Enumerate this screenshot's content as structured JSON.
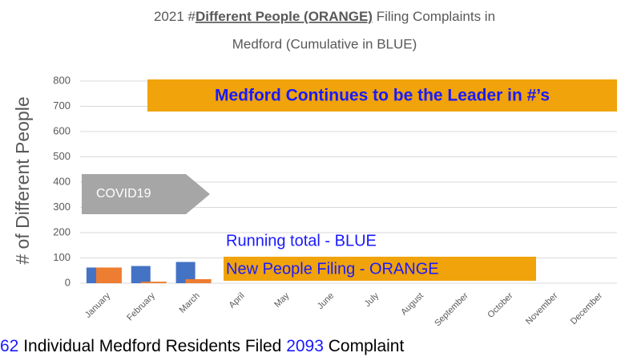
{
  "chart_data": {
    "type": "bar",
    "title": [
      "2021 #",
      "Different People (ORANGE)",
      " Filing Complaints in",
      "Medford (Cumulative in BLUE)"
    ],
    "y_label": "# of Different People",
    "categories": [
      "January",
      "February",
      "March",
      "April",
      "May",
      "June",
      "July",
      "August",
      "September",
      "October",
      "November",
      "December"
    ],
    "series": [
      {
        "name": "Running total - BLUE",
        "color": "#4472c4",
        "values": [
          62,
          68,
          84,
          null,
          null,
          null,
          null,
          null,
          null,
          null,
          null,
          null
        ]
      },
      {
        "name": "New People Filing - ORANGE",
        "color": "#ed7d31",
        "values": [
          62,
          6,
          16,
          null,
          null,
          null,
          null,
          null,
          null,
          null,
          null,
          null
        ]
      }
    ],
    "ylim": [
      0,
      800
    ],
    "yticks": [
      0,
      100,
      200,
      300,
      400,
      500,
      600,
      700,
      800
    ],
    "grid": true,
    "annotations": {
      "headline": "Medford Continues to be the Leader in #’s",
      "arrow": "COVID19"
    },
    "footer": [
      "62",
      " Individual Medford Residents Filed ",
      "2093",
      " Complaint"
    ]
  }
}
